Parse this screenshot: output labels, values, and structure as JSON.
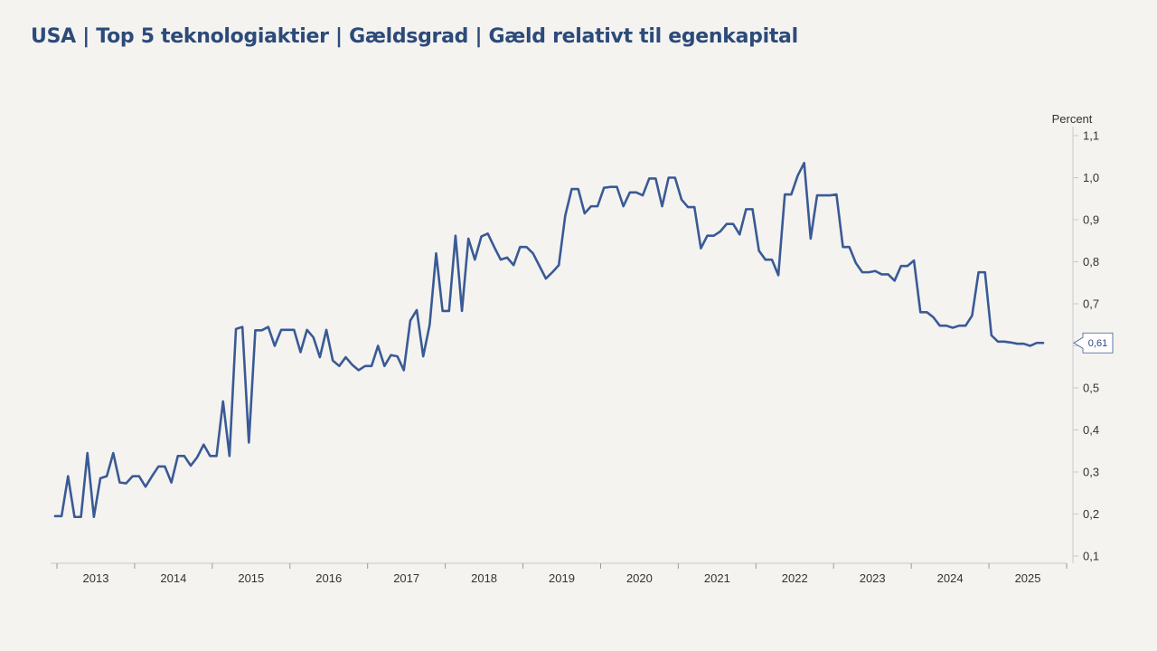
{
  "title": "USA | Top 5 teknologiaktier | Gældsgrad | Gæld relativt til egenkapital",
  "chart_data": {
    "type": "line",
    "title": "USA | Top 5 teknologiaktier | Gældsgrad | Gæld relativt til egenkapital",
    "ylabel": "Percent",
    "xlabel": "",
    "ylim": [
      0.1,
      1.1
    ],
    "y_ticks": [
      "0,1",
      "0,2",
      "0,3",
      "0,4",
      "0,5",
      "0,6",
      "0,7",
      "0,8",
      "0,9",
      "1,0",
      "1,1"
    ],
    "x_ticks": [
      "2013",
      "2014",
      "2015",
      "2016",
      "2017",
      "2018",
      "2019",
      "2020",
      "2021",
      "2022",
      "2023",
      "2024",
      "2025"
    ],
    "x_start": 2012.5,
    "x_end": 2025.5,
    "line_color": "#3a5a95",
    "last_value_label": "0,61",
    "series": [
      {
        "name": "Gældsgrad",
        "values": [
          0.195,
          0.195,
          0.29,
          0.193,
          0.193,
          0.345,
          0.193,
          0.285,
          0.29,
          0.345,
          0.275,
          0.273,
          0.29,
          0.29,
          0.265,
          0.29,
          0.313,
          0.313,
          0.275,
          0.338,
          0.338,
          0.315,
          0.335,
          0.365,
          0.338,
          0.338,
          0.468,
          0.338,
          0.64,
          0.645,
          0.37,
          0.637,
          0.637,
          0.645,
          0.6,
          0.638,
          0.638,
          0.638,
          0.585,
          0.638,
          0.62,
          0.573,
          0.638,
          0.565,
          0.552,
          0.573,
          0.555,
          0.542,
          0.552,
          0.552,
          0.6,
          0.552,
          0.578,
          0.575,
          0.542,
          0.66,
          0.685,
          0.575,
          0.65,
          0.82,
          0.683,
          0.683,
          0.862,
          0.683,
          0.855,
          0.805,
          0.86,
          0.867,
          0.835,
          0.805,
          0.81,
          0.792,
          0.835,
          0.835,
          0.82,
          0.79,
          0.76,
          0.775,
          0.792,
          0.91,
          0.973,
          0.973,
          0.915,
          0.932,
          0.932,
          0.976,
          0.978,
          0.978,
          0.932,
          0.965,
          0.965,
          0.958,
          0.998,
          0.998,
          0.932,
          1.0,
          1.0,
          0.948,
          0.93,
          0.93,
          0.832,
          0.862,
          0.862,
          0.872,
          0.89,
          0.89,
          0.865,
          0.925,
          0.925,
          0.826,
          0.805,
          0.805,
          0.768,
          0.96,
          0.96,
          1.005,
          1.035,
          0.855,
          0.958,
          0.958,
          0.958,
          0.96,
          0.835,
          0.835,
          0.797,
          0.775,
          0.775,
          0.778,
          0.77,
          0.77,
          0.755,
          0.79,
          0.79,
          0.803,
          0.68,
          0.68,
          0.668,
          0.648,
          0.648,
          0.643,
          0.648,
          0.648,
          0.672,
          0.775,
          0.775,
          0.625,
          0.61,
          0.61,
          0.608,
          0.605,
          0.605,
          0.6,
          0.607,
          0.607
        ]
      }
    ]
  }
}
